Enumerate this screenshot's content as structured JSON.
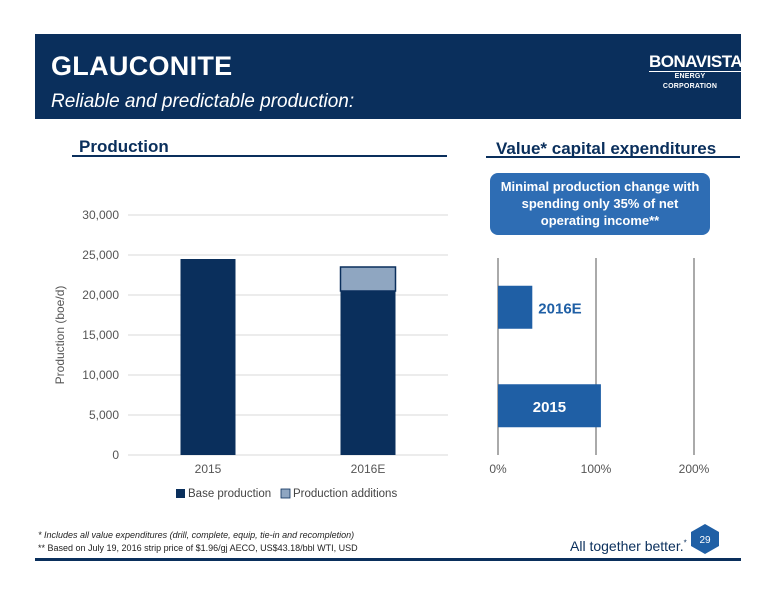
{
  "header": {
    "title": "GLAUCONITE",
    "subtitle": "Reliable and predictable production:",
    "logo_main": "BONAVISTA",
    "logo_sub": "ENERGY CORPORATION"
  },
  "sections": {
    "left": "Production",
    "right": "Value* capital expenditures"
  },
  "callout": {
    "line1": "Minimal production change with",
    "line2": "spending only 35% of net",
    "line3": "operating income**"
  },
  "chart_data": [
    {
      "type": "bar",
      "stacked": true,
      "categories": [
        "2015",
        "2016E"
      ],
      "series": [
        {
          "name": "Base production",
          "values": [
            24500,
            20500
          ],
          "color": "#0a2f5c"
        },
        {
          "name": "Production additions",
          "values": [
            0,
            3000
          ],
          "color": "#8fa6c1"
        }
      ],
      "ylabel": "Production (boe/d)",
      "ylim": [
        0,
        30000
      ],
      "yticks": [
        "0",
        "5,000",
        "10,000",
        "15,000",
        "20,000",
        "25,000",
        "30,000"
      ],
      "legend": "bottom",
      "grid": true
    },
    {
      "type": "bar",
      "orientation": "horizontal",
      "categories": [
        "2016E",
        "2015"
      ],
      "values": [
        35,
        105
      ],
      "xlim": [
        0,
        200
      ],
      "xticks": [
        "0%",
        "100%",
        "200%"
      ],
      "bar_color": "#1f5fa5",
      "grid": true
    }
  ],
  "footnotes": {
    "note1": "*  Includes all value expenditures (drill, complete, equip, tie-in and recompletion)",
    "note2": "** Based on July 19, 2016 strip price of $1.96/gj AECO, US$43.18/bbl WTI, USD"
  },
  "tagline": "All together better.",
  "tagline_mark": "*",
  "page_number": "29"
}
